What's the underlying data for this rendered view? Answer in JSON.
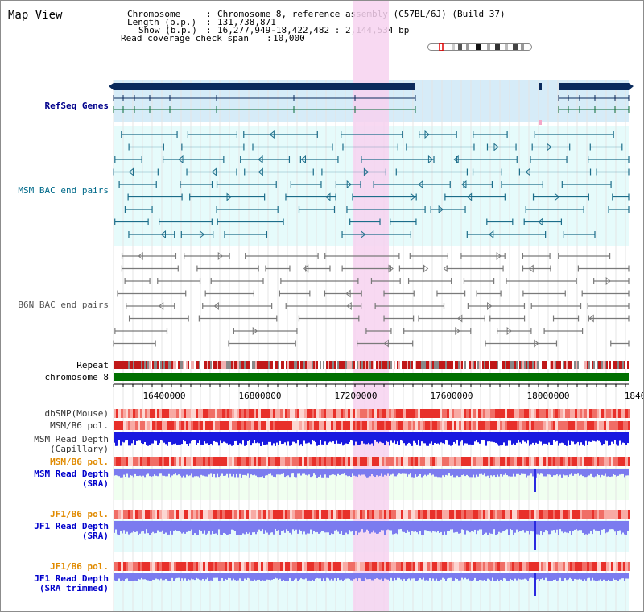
{
  "title": "Map View",
  "info": {
    "chromosome_label": "Chromosome",
    "chromosome_value": "Chromosome 8, reference assembly (C57BL/6J) (Build 37)",
    "length_label": "Length (b.p.)",
    "length_value": "131,738,871",
    "show_label": "Show (b.p.)",
    "show_value": "16,277,949-18,422,482 : 2,144,534 bp",
    "coverage_label": "Read coverage check span",
    "coverage_value": "10,000"
  },
  "tracks": {
    "refseq": "RefSeq Genes",
    "msm_bac": "MSM BAC end pairs",
    "b6n_bac": "B6N BAC end pairs",
    "repeat": "Repeat",
    "chromosome": "chromosome 8",
    "dbsnp": "dbSNP(Mouse)",
    "msm_b6_pol": "MSM/B6 pol.",
    "msm_depth_cap_1": "MSM Read Depth",
    "msm_depth_cap_2": "(Capillary)",
    "msm_b6_pol_2": "MSM/B6 pol.",
    "msm_depth_sra_1": "MSM Read Depth",
    "msm_depth_sra_2": "(SRA)",
    "jf1_b6_pol": "JF1/B6 pol.",
    "jf1_depth_sra_1": "JF1 Read Depth",
    "jf1_depth_sra_2": "(SRA)",
    "jf1_b6_pol_2": "JF1/B6 pol.",
    "jf1_depth_trim_1": "JF1 Read Depth",
    "jf1_depth_trim_2": "(SRA trimmed)"
  },
  "ruler_ticks": [
    "16400000",
    "16800000",
    "17200000",
    "17600000",
    "18000000",
    "1840"
  ],
  "colors": {
    "refseq_gene": "#0a2a5c",
    "refseq_bg": "#d6ecf8",
    "highlight": "#f7d2f0",
    "msm_bac": "#1c6d8a",
    "b6n_bac": "#7a7a7a",
    "chromosome_bar": "#007000",
    "snp": "#e8403a",
    "depth_capillary": "#1a1ae0",
    "depth_sra": "#7b7bef",
    "track_bg_teal": "#e6fbfb",
    "track_bg_green": "#f0fff0"
  }
}
